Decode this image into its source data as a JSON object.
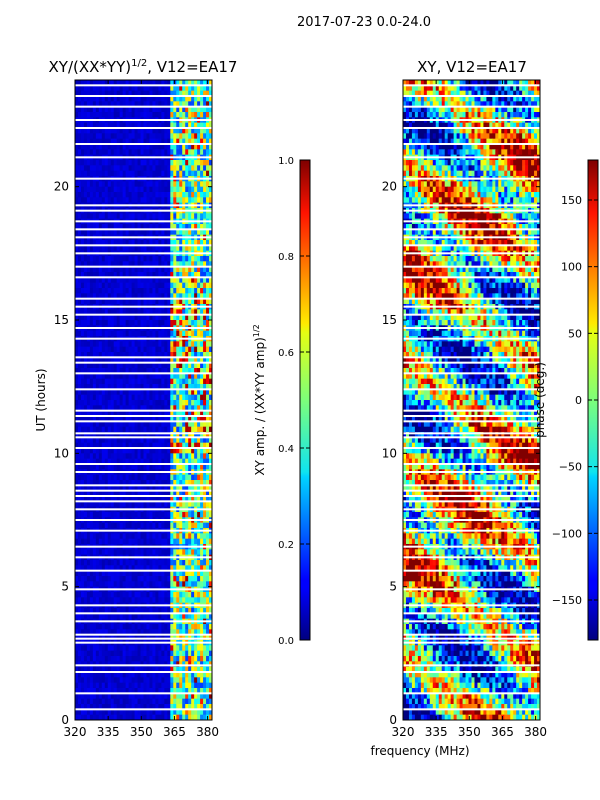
{
  "figure": {
    "suptitle": "2017-07-23 0.0-24.0",
    "shared_xlabel": "frequency (MHz)"
  },
  "chart_data": [
    {
      "type": "heatmap",
      "id": "amp",
      "title": "XY/(XX*YY)",
      "title_exponent": "1/2",
      "title_suffix": ", V12=EA17",
      "xlabel": "frequency (MHz)",
      "ylabel": "UT (hours)",
      "xlim": [
        320,
        382
      ],
      "ylim": [
        0,
        24
      ],
      "xticks": [
        320,
        335,
        350,
        365,
        380
      ],
      "yticks": [
        0,
        5,
        10,
        15,
        20
      ],
      "colorbar": {
        "label": "XY amp. / (XX*YY amp)",
        "label_exponent": "1/2",
        "range": [
          0.0,
          1.0
        ],
        "ticks": [
          "0.0",
          "0.2",
          "0.4",
          "0.6",
          "0.8",
          "1.0"
        ],
        "tick_values": [
          0.0,
          0.2,
          0.4,
          0.6,
          0.8,
          1.0
        ]
      },
      "description_values": {
        "background_value": 0.05,
        "band_start_mhz": 363,
        "band_end_mhz": 382,
        "band_typical_value": 0.45,
        "peak_value": 1.0
      }
    },
    {
      "type": "heatmap",
      "id": "phase",
      "title": "XY, V12=EA17",
      "xlabel": "frequency (MHz)",
      "ylabel": "",
      "xlim": [
        320,
        382
      ],
      "ylim": [
        0,
        24
      ],
      "xticks": [
        320,
        335,
        350,
        365,
        380
      ],
      "yticks": [
        0,
        5,
        10,
        15,
        20
      ],
      "colorbar": {
        "label": "phase (deg.)",
        "range": [
          -180,
          180
        ],
        "ticks": [
          "150",
          "100",
          "50",
          "0",
          "−50",
          "−100",
          "−150"
        ],
        "tick_values": [
          150,
          100,
          50,
          0,
          -50,
          -100,
          -150
        ]
      }
    }
  ],
  "flagged_hours": [
    0.4,
    1.0,
    1.8,
    2.05,
    2.9,
    3.05,
    3.2,
    3.7,
    4.0,
    4.3,
    4.9,
    5.6,
    6.1,
    6.5,
    7.1,
    7.5,
    7.9,
    8.2,
    8.4,
    8.6,
    8.8,
    9.3,
    9.6,
    10.2,
    10.6,
    10.75,
    11.2,
    11.4,
    11.6,
    12.4,
    13.0,
    13.4,
    13.6,
    14.3,
    14.7,
    15.2,
    15.5,
    15.8,
    16.6,
    17.0,
    17.5,
    17.8,
    18.1,
    18.4,
    18.7,
    19.1,
    19.3,
    20.3,
    21.1,
    21.6,
    22.2,
    22.5,
    23.0,
    23.4,
    23.8
  ]
}
